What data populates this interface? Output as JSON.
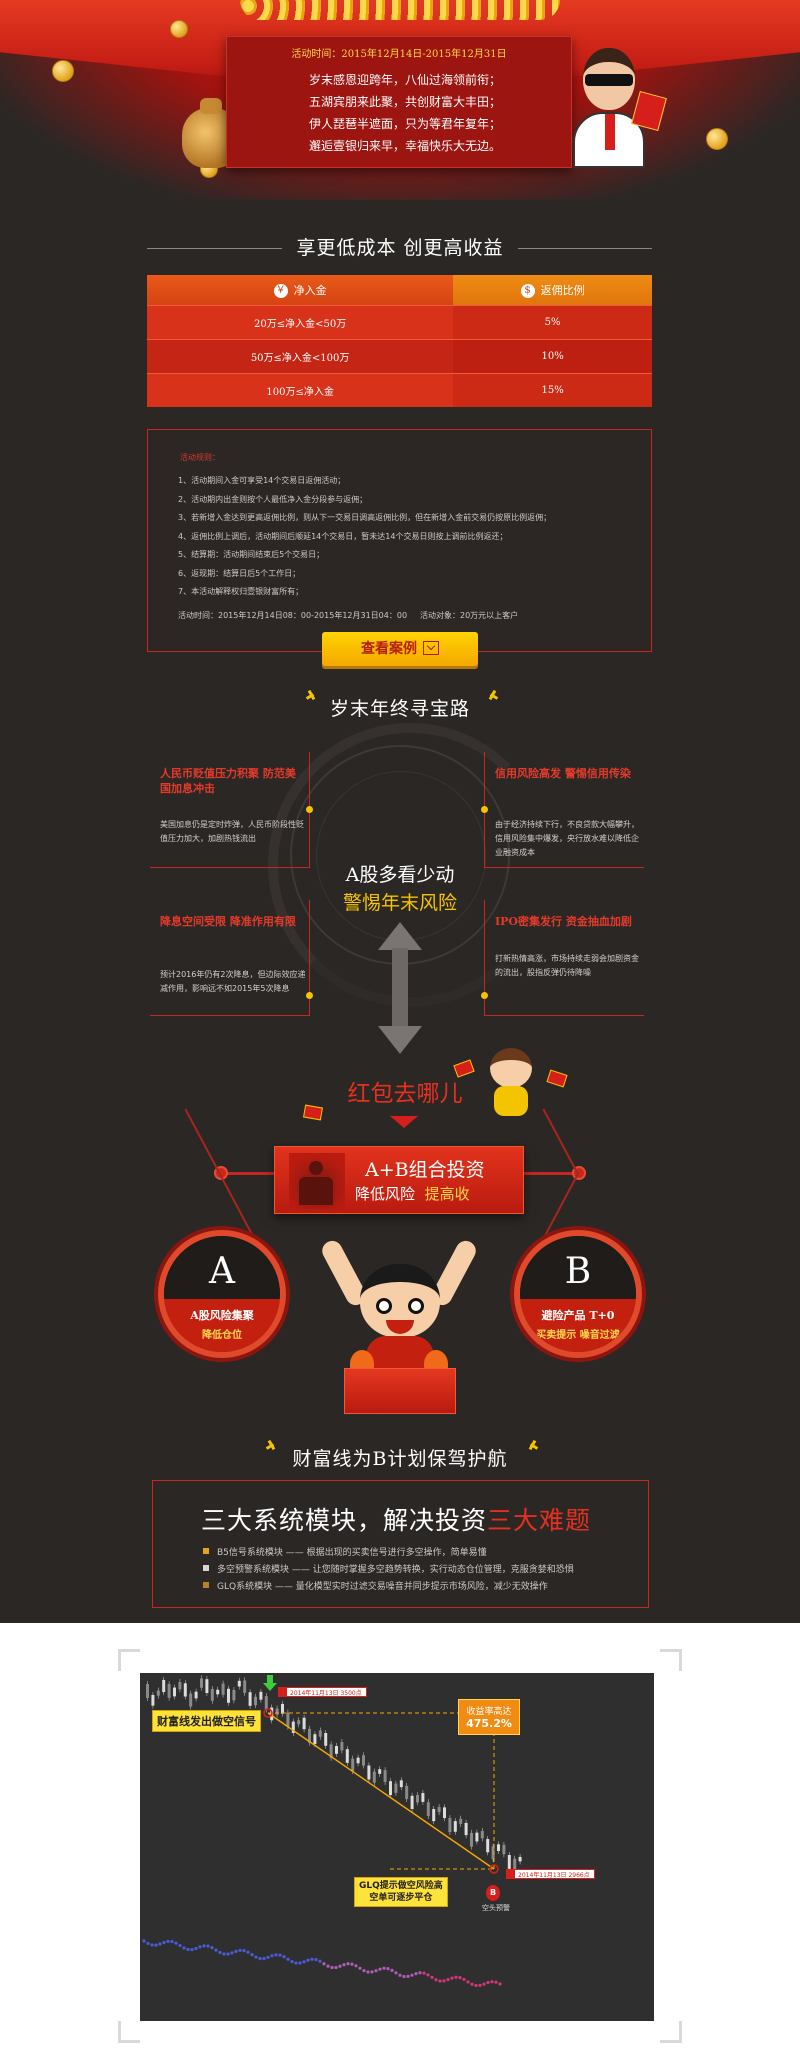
{
  "hero": {
    "date": "活动时间：2015年12月14日-2015年12月31日",
    "poem": [
      "岁末感恩迎跨年，八仙过海领前衔；",
      "五湖宾朋来此聚，共创财富大丰田；",
      "伊人琵琶半遮面，只为等君年复年；",
      "邂逅壹银归来早，幸福快乐大无边。"
    ]
  },
  "section1": {
    "title": "享更低成本 创更高收益"
  },
  "rate_table": {
    "headers": [
      "净入金",
      "返佣比例"
    ],
    "header_icons": [
      "money-bag-icon",
      "dollar-coin-icon"
    ],
    "rows": [
      [
        "20万≤净入金<50万",
        "5%"
      ],
      [
        "50万≤净入金<100万",
        "10%"
      ],
      [
        "100万≤净入金",
        "15%"
      ]
    ]
  },
  "rules": {
    "heading": "活动规则：",
    "items": [
      "1、活动期间入金可享受14个交易日返佣活动；",
      "2、活动期内出金则按个人最低净入金分段参与返佣；",
      "3、若新增入金达到更高返佣比例，则从下一交易日调高返佣比例，但在新增入金前交易仍按原比例返佣；",
      "4、返佣比例上调后，活动期间后顺延14个交易日，暂未达14个交易日则按上调前比例返还；",
      "5、结算期：活动期间结束后5个交易日；",
      "6、返现期：结算日后5个工作日；",
      "7、本活动解释权归壹银财富所有；"
    ],
    "period": "活动时间：2015年12月14日08：00-2015年12月31日04：00",
    "target": "活动对象：20万元以上客户",
    "button": "查看案例"
  },
  "treasure": {
    "title": "岁末年终寻宝路",
    "center_line1": "A股多看少动",
    "center_line2": "警惕年末风险",
    "boxes": [
      {
        "title": "人民币贬值压力积聚 防范美国加息冲击",
        "text": "美国加息仍是定时炸弹，人民币阶段性贬值压力加大，加剧热钱流出"
      },
      {
        "title": "信用风险高发 警惕信用传染",
        "text": "由于经济持续下行，不良贷款大幅攀升，信用风险集中爆发，央行放水难以降低企业融资成本"
      },
      {
        "title": "降息空间受限 降准作用有限",
        "text": "预计2016年仍有2次降息，但边际效应递减作用，影响远不如2015年5次降息"
      },
      {
        "title": "IPO密集发行 资金抽血加剧",
        "text": "打新热情高涨，市场持续走弱会加剧资金的流出，股指反弹仍待降噪"
      }
    ]
  },
  "hongbao": {
    "title": "红包去哪儿",
    "banner_line1": "A+B组合投资",
    "banner_line2a": "降低风险",
    "banner_line2b": "提高收",
    "a": {
      "letter": "A",
      "line1": "A股风险集聚",
      "line2": "降低仓位"
    },
    "b": {
      "letter": "B",
      "line1": "避险产品 T+0",
      "line2": "买卖提示 噪音过滤"
    }
  },
  "section4": {
    "title": "财富线为B计划保驾护航"
  },
  "modules": {
    "title_a": "三大系统模块，解决投资",
    "title_b": "三大难题",
    "items": [
      "B5信号系统模块 —— 根据出现的买卖信号进行多空操作，简单易懂",
      "多空预警系统模块 —— 让您随时掌握多空趋势转换，实行动态仓位管理，克服贪婪和恐惧",
      "GLQ系统模块 —— 量化模型实时过滤交易噪音并同步提示市场风险，减少无效操作"
    ]
  },
  "chart": {
    "tag_top": "2014年11月13日  3500点",
    "tag_bottom": "2014年11月13日  2966点",
    "signal_label": "财富线发出做空信号",
    "return_label": "收益率高达",
    "return_value": "475.2%",
    "glq_line1": "GLQ提示做空风险高",
    "glq_line2": "空单可逐步平仓",
    "warn_label": "空头预警",
    "b_marker": "B"
  },
  "chart_data": {
    "type": "line",
    "x": [
      "2014-11-13",
      "2014-11-13"
    ],
    "series": [
      {
        "values": [
          3500,
          2966
        ]
      }
    ],
    "title": "",
    "xlabel": "",
    "ylabel": ""
  },
  "colors": {
    "brand_red": "#d61f1b",
    "gold": "#f5c400",
    "bg": "#2b2725"
  }
}
